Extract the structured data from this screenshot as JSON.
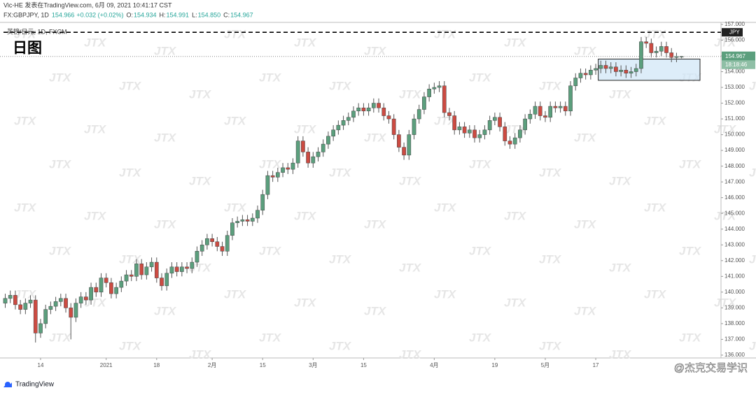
{
  "header": {
    "publisher": "Vic-HE 发表在TradingView.com, 6月 09, 2021 10:41:17 CST",
    "symbol": "FX:GBPJPY, 1D",
    "last": "154.966",
    "change": "+0.032 (+0.02%)",
    "ohlc_legend": [
      {
        "label": "O:",
        "value": "154.934"
      },
      {
        "label": "H:",
        "value": "154.991"
      },
      {
        "label": "L:",
        "value": "154.850"
      },
      {
        "label": "C:",
        "value": "154.967"
      }
    ]
  },
  "chart_data": {
    "type": "candlestick",
    "title": "日图",
    "subtitle": "英镑/日元, 1D, FXCM",
    "categories": [
      null,
      null,
      null,
      null,
      null,
      null,
      null,
      "14",
      null,
      null,
      null,
      null,
      null,
      null,
      null,
      null,
      null,
      null,
      null,
      null,
      "2021",
      null,
      null,
      null,
      null,
      null,
      null,
      null,
      null,
      null,
      "18",
      null,
      null,
      null,
      null,
      null,
      null,
      null,
      null,
      null,
      null,
      "2月",
      null,
      null,
      null,
      null,
      null,
      null,
      null,
      null,
      null,
      "15",
      null,
      null,
      null,
      null,
      null,
      null,
      null,
      null,
      null,
      "3月",
      null,
      null,
      null,
      null,
      null,
      null,
      null,
      null,
      null,
      "15",
      null,
      null,
      null,
      null,
      null,
      null,
      null,
      null,
      null,
      null,
      null,
      null,
      null,
      "4月",
      null,
      null,
      null,
      null,
      null,
      null,
      null,
      null,
      null,
      null,
      null,
      "19",
      null,
      null,
      null,
      null,
      null,
      null,
      null,
      null,
      null,
      "5月",
      null,
      null,
      null,
      null,
      null,
      null,
      null,
      null,
      null,
      "17",
      null,
      null,
      null,
      null,
      null,
      null,
      null,
      null,
      null,
      null,
      null,
      null,
      null,
      null,
      null,
      null,
      null
    ],
    "open": [
      139.3,
      139.6,
      139.8,
      139.2,
      138.9,
      139.3,
      139.5,
      137.4,
      138.0,
      138.9,
      139.1,
      139.4,
      139.6,
      139.0,
      138.4,
      139.3,
      139.7,
      139.5,
      140.3,
      140.0,
      140.9,
      140.6,
      139.9,
      140.3,
      140.7,
      141.1,
      141.0,
      141.8,
      141.1,
      141.6,
      141.9,
      140.9,
      140.4,
      141.2,
      141.6,
      141.3,
      141.6,
      141.5,
      141.9,
      142.6,
      143.0,
      143.4,
      143.2,
      142.9,
      142.6,
      143.6,
      144.4,
      144.5,
      144.6,
      144.5,
      144.7,
      145.2,
      146.2,
      147.4,
      147.3,
      147.6,
      147.9,
      147.8,
      148.2,
      149.6,
      148.9,
      148.2,
      148.6,
      148.9,
      149.4,
      149.9,
      150.3,
      150.6,
      150.9,
      151.1,
      151.5,
      151.7,
      151.5,
      151.7,
      152.0,
      151.7,
      151.2,
      151.0,
      150.0,
      149.2,
      148.7,
      150.0,
      151.0,
      151.6,
      152.4,
      152.9,
      153.0,
      153.1,
      151.4,
      151.2,
      150.3,
      150.5,
      150.1,
      150.3,
      149.8,
      150.0,
      150.3,
      150.9,
      151.1,
      150.5,
      149.6,
      149.4,
      149.8,
      150.3,
      151.0,
      151.3,
      151.8,
      151.2,
      151.1,
      151.8,
      151.7,
      151.8,
      151.5,
      153.1,
      153.6,
      153.9,
      153.8,
      154.1,
      154.2,
      154.4,
      154.2,
      154.3,
      154.0,
      154.1,
      153.9,
      154.0,
      154.2,
      155.9,
      155.8,
      155.2,
      155.3,
      155.6,
      155.2,
      154.9,
      154.934
    ],
    "high": [
      139.9,
      140.1,
      140.1,
      139.5,
      139.6,
      139.8,
      139.8,
      138.3,
      139.2,
      139.4,
      139.7,
      139.9,
      139.9,
      139.3,
      139.6,
      140.0,
      140.0,
      140.6,
      140.6,
      141.2,
      141.2,
      140.9,
      140.6,
      141.0,
      141.4,
      141.4,
      142.1,
      142.1,
      141.9,
      142.2,
      142.2,
      141.2,
      141.5,
      141.9,
      141.9,
      141.9,
      141.9,
      142.2,
      142.9,
      143.3,
      143.7,
      143.7,
      143.5,
      143.2,
      143.9,
      144.7,
      144.8,
      144.9,
      144.9,
      145.0,
      145.5,
      146.5,
      147.7,
      147.7,
      147.9,
      148.2,
      148.2,
      148.5,
      149.9,
      149.9,
      149.2,
      148.9,
      149.2,
      149.7,
      150.2,
      150.6,
      150.9,
      151.2,
      151.4,
      151.8,
      152.0,
      152.0,
      152.0,
      152.3,
      152.3,
      152.0,
      151.5,
      151.3,
      150.3,
      149.5,
      150.3,
      151.3,
      151.9,
      152.7,
      153.2,
      153.3,
      153.4,
      153.4,
      151.7,
      151.5,
      150.8,
      150.8,
      150.6,
      150.6,
      150.3,
      150.6,
      151.2,
      151.4,
      151.4,
      150.8,
      149.9,
      150.1,
      150.6,
      151.3,
      151.6,
      152.1,
      152.1,
      151.5,
      152.1,
      152.1,
      152.1,
      152.1,
      153.4,
      153.9,
      154.2,
      154.2,
      154.4,
      154.5,
      154.7,
      154.7,
      154.6,
      154.6,
      154.4,
      154.4,
      154.3,
      154.5,
      156.2,
      156.2,
      156.1,
      155.6,
      155.9,
      155.9,
      155.5,
      155.2,
      154.991
    ],
    "low": [
      139.0,
      139.3,
      138.9,
      138.6,
      138.6,
      139.0,
      136.8,
      137.1,
      137.7,
      138.6,
      138.8,
      139.1,
      138.7,
      137.0,
      138.1,
      139.0,
      139.2,
      139.2,
      139.7,
      139.7,
      140.3,
      139.6,
      139.6,
      140.0,
      140.4,
      140.7,
      140.7,
      140.8,
      140.8,
      141.3,
      140.6,
      140.1,
      140.1,
      140.9,
      141.0,
      141.0,
      141.2,
      141.2,
      141.6,
      142.3,
      142.7,
      142.9,
      142.6,
      142.3,
      142.3,
      143.3,
      144.1,
      144.2,
      144.2,
      144.2,
      144.4,
      144.9,
      145.9,
      147.0,
      147.0,
      147.3,
      147.5,
      147.5,
      147.9,
      148.6,
      147.9,
      147.9,
      148.3,
      148.6,
      149.1,
      149.6,
      150.0,
      150.3,
      150.6,
      150.8,
      151.2,
      151.2,
      151.2,
      151.4,
      151.4,
      150.9,
      150.7,
      149.7,
      148.9,
      148.4,
      148.4,
      149.7,
      150.7,
      151.3,
      152.1,
      152.6,
      152.7,
      151.1,
      150.9,
      150.0,
      150.0,
      149.8,
      149.8,
      149.5,
      149.5,
      149.7,
      150.0,
      150.6,
      150.2,
      149.3,
      149.1,
      149.1,
      149.5,
      150.0,
      150.7,
      151.0,
      150.9,
      150.8,
      150.8,
      151.4,
      151.4,
      151.2,
      151.2,
      152.8,
      153.3,
      153.5,
      153.5,
      153.8,
      153.9,
      153.9,
      153.9,
      153.7,
      153.7,
      153.6,
      153.6,
      153.7,
      153.9,
      155.5,
      154.9,
      154.9,
      155.0,
      154.9,
      154.6,
      154.6,
      154.85
    ],
    "close": [
      139.6,
      139.8,
      139.2,
      138.9,
      139.3,
      139.5,
      137.4,
      138.0,
      138.9,
      139.1,
      139.4,
      139.6,
      139.0,
      138.4,
      139.3,
      139.7,
      139.5,
      140.3,
      140.0,
      140.9,
      140.6,
      139.9,
      140.3,
      140.7,
      141.1,
      141.0,
      141.8,
      141.1,
      141.6,
      141.9,
      140.9,
      140.4,
      141.2,
      141.6,
      141.3,
      141.6,
      141.5,
      141.9,
      142.6,
      143.0,
      143.4,
      143.2,
      142.9,
      142.6,
      143.6,
      144.4,
      144.5,
      144.6,
      144.5,
      144.7,
      145.2,
      146.2,
      147.4,
      147.3,
      147.6,
      147.9,
      147.8,
      148.2,
      149.6,
      148.9,
      148.2,
      148.6,
      148.9,
      149.4,
      149.9,
      150.3,
      150.6,
      150.9,
      151.1,
      151.5,
      151.7,
      151.5,
      151.7,
      152.0,
      151.7,
      151.2,
      151.0,
      150.0,
      149.2,
      148.7,
      150.0,
      151.0,
      151.6,
      152.4,
      152.9,
      153.0,
      153.1,
      151.4,
      151.2,
      150.3,
      150.5,
      150.1,
      150.3,
      149.8,
      150.0,
      150.3,
      150.9,
      151.1,
      150.5,
      149.6,
      149.4,
      149.8,
      150.3,
      151.0,
      151.3,
      151.8,
      151.2,
      151.1,
      151.8,
      151.7,
      151.8,
      151.5,
      153.1,
      153.6,
      153.9,
      153.8,
      154.1,
      154.2,
      154.4,
      154.2,
      154.3,
      154.0,
      154.1,
      153.9,
      154.0,
      154.2,
      155.9,
      155.8,
      155.2,
      155.3,
      155.6,
      155.2,
      154.9,
      154.96,
      154.967
    ],
    "up_color": "#5b9f7d",
    "down_color": "#cc4b42",
    "ylim": [
      135.82,
      157.13
    ],
    "yticks": [
      {
        "value": 136,
        "label": "136.000"
      },
      {
        "value": 137,
        "label": "137.000"
      },
      {
        "value": 138,
        "label": "138.000"
      },
      {
        "value": 139,
        "label": "139.000"
      },
      {
        "value": 140,
        "label": "140.000"
      },
      {
        "value": 141,
        "label": "141.000"
      },
      {
        "value": 142,
        "label": "142.000"
      },
      {
        "value": 143,
        "label": "143.000"
      },
      {
        "value": 144,
        "label": "144.000"
      },
      {
        "value": 145,
        "label": "145.000"
      },
      {
        "value": 146,
        "label": "146.000"
      },
      {
        "value": 147,
        "label": "147.000"
      },
      {
        "value": 148,
        "label": "148.000"
      },
      {
        "value": 149,
        "label": "149.000"
      },
      {
        "value": 150,
        "label": "150.000"
      },
      {
        "value": 151,
        "label": "151.000"
      },
      {
        "value": 152,
        "label": "152.000"
      },
      {
        "value": 153,
        "label": "153.000"
      },
      {
        "value": 154,
        "label": "154.000"
      },
      {
        "value": 155,
        "label": "155.000"
      },
      {
        "value": 156,
        "label": "156.000"
      },
      {
        "value": 157,
        "label": "157.000"
      }
    ],
    "grid": false,
    "hline": 156.5,
    "box_range": [
      153.45,
      154.8
    ],
    "currency": "JPY",
    "countdown": "18:18:46"
  },
  "footer": {
    "brand": "TradingView",
    "watermark": "JTX",
    "credit": "@杰克交易学识"
  }
}
